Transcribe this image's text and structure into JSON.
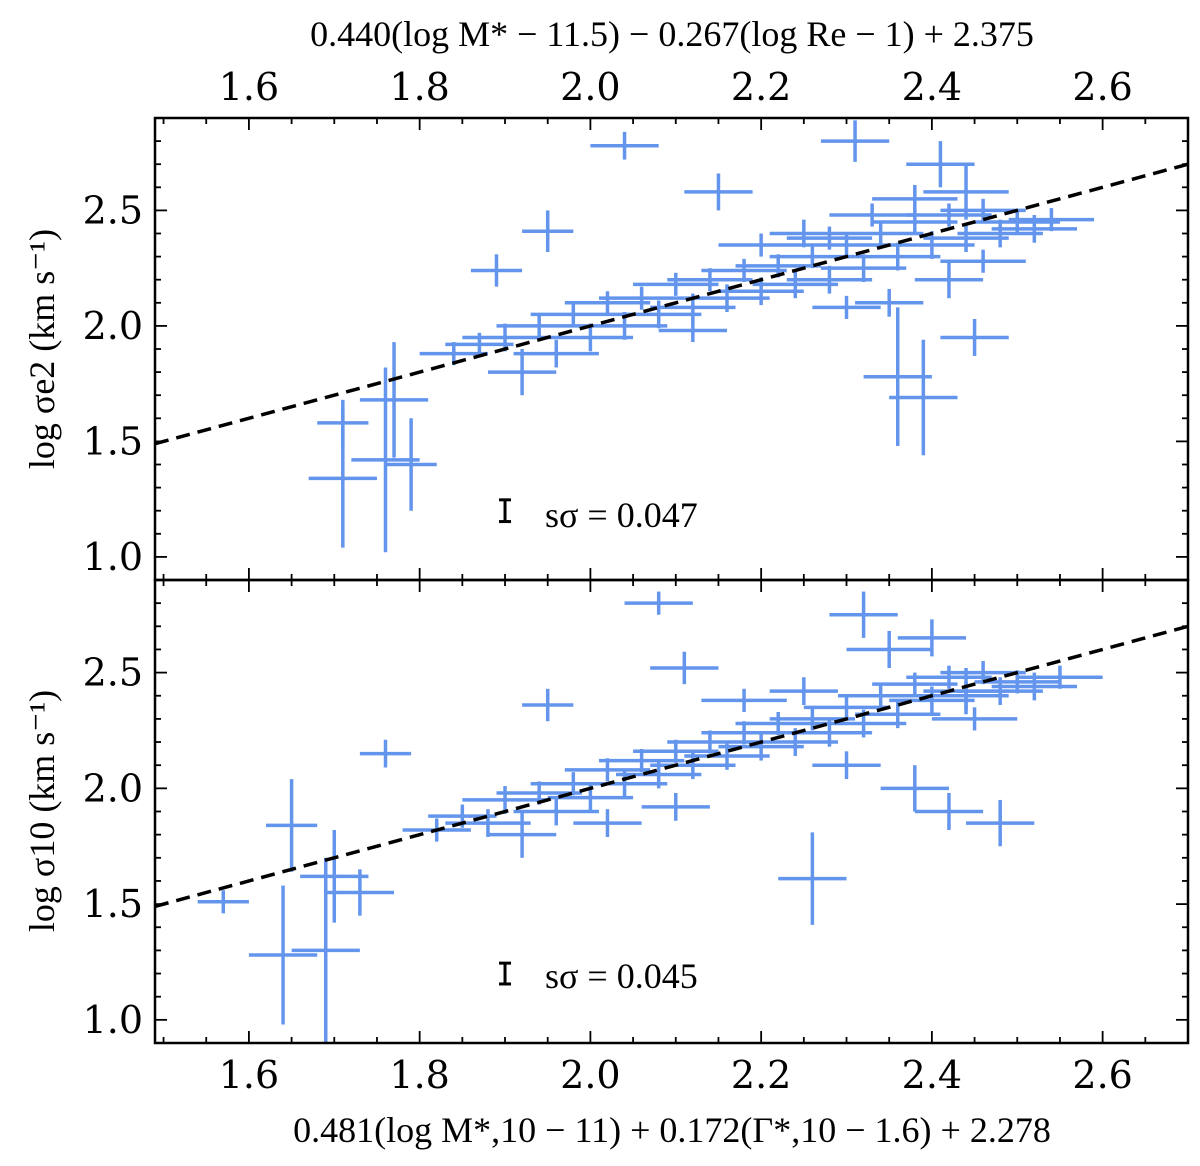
{
  "chart_data": [
    {
      "type": "scatter",
      "panel": "top",
      "xlabel": "0.440(log M* − 11.5) − 0.267(log Re − 1) + 2.375",
      "ylabel": "log σe2 (km s⁻¹)",
      "xlim": [
        1.49,
        2.7
      ],
      "ylim": [
        0.9,
        2.9
      ],
      "xticks": [
        "1.6",
        "1.8",
        "2.0",
        "2.2",
        "2.4",
        "2.6"
      ],
      "yticks": [
        "1.0",
        "1.5",
        "2.0",
        "2.5"
      ],
      "x_axis_position": "top",
      "annotation": "sσ = 0.047",
      "scatter_value": 0.047,
      "line": {
        "style": "dashed",
        "color": "#000000",
        "slope": 1,
        "intercept": 0
      },
      "color": "#6495ED",
      "points": [
        [
          2.04,
          2.78,
          0.04,
          0.06
        ],
        [
          2.15,
          2.58,
          0.04,
          0.08
        ],
        [
          2.31,
          2.8,
          0.04,
          0.09
        ],
        [
          1.95,
          2.41,
          0.03,
          0.09
        ],
        [
          1.89,
          2.24,
          0.03,
          0.07
        ],
        [
          1.71,
          1.58,
          0.03,
          0.1
        ],
        [
          1.71,
          1.34,
          0.04,
          0.3
        ],
        [
          1.76,
          1.42,
          0.04,
          0.4
        ],
        [
          1.79,
          1.4,
          0.03,
          0.2
        ],
        [
          1.77,
          1.68,
          0.04,
          0.25
        ],
        [
          2.39,
          1.69,
          0.04,
          0.25
        ],
        [
          2.36,
          1.78,
          0.04,
          0.3
        ],
        [
          2.44,
          2.58,
          0.05,
          0.12
        ],
        [
          2.41,
          2.7,
          0.04,
          0.1
        ],
        [
          1.84,
          1.88,
          0.04,
          0.05
        ],
        [
          1.87,
          1.92,
          0.04,
          0.05
        ],
        [
          1.9,
          1.95,
          0.05,
          0.06
        ],
        [
          1.92,
          1.8,
          0.04,
          0.1
        ],
        [
          1.94,
          2.0,
          0.05,
          0.05
        ],
        [
          1.96,
          1.88,
          0.05,
          0.06
        ],
        [
          1.98,
          2.05,
          0.05,
          0.05
        ],
        [
          2.0,
          1.95,
          0.05,
          0.06
        ],
        [
          2.02,
          2.1,
          0.05,
          0.05
        ],
        [
          2.04,
          2.0,
          0.05,
          0.06
        ],
        [
          2.06,
          2.12,
          0.05,
          0.05
        ],
        [
          2.08,
          2.05,
          0.05,
          0.06
        ],
        [
          2.1,
          2.18,
          0.05,
          0.05
        ],
        [
          2.12,
          2.08,
          0.05,
          0.06
        ],
        [
          2.14,
          2.2,
          0.05,
          0.05
        ],
        [
          2.16,
          2.12,
          0.05,
          0.06
        ],
        [
          2.18,
          2.24,
          0.05,
          0.05
        ],
        [
          2.2,
          2.15,
          0.05,
          0.06
        ],
        [
          2.22,
          2.26,
          0.05,
          0.05
        ],
        [
          2.24,
          2.18,
          0.05,
          0.06
        ],
        [
          2.26,
          2.3,
          0.05,
          0.05
        ],
        [
          2.28,
          2.2,
          0.05,
          0.06
        ],
        [
          2.3,
          2.35,
          0.05,
          0.05
        ],
        [
          2.32,
          2.25,
          0.05,
          0.06
        ],
        [
          2.34,
          2.4,
          0.05,
          0.05
        ],
        [
          2.36,
          2.3,
          0.05,
          0.06
        ],
        [
          2.38,
          2.45,
          0.05,
          0.05
        ],
        [
          2.4,
          2.35,
          0.05,
          0.06
        ],
        [
          2.42,
          2.48,
          0.05,
          0.05
        ],
        [
          2.44,
          2.38,
          0.05,
          0.06
        ],
        [
          2.46,
          2.5,
          0.05,
          0.05
        ],
        [
          2.48,
          2.4,
          0.05,
          0.06
        ],
        [
          2.5,
          2.45,
          0.05,
          0.05
        ],
        [
          2.52,
          2.42,
          0.05,
          0.06
        ],
        [
          2.54,
          2.46,
          0.05,
          0.05
        ],
        [
          2.35,
          2.1,
          0.04,
          0.06
        ],
        [
          2.3,
          2.08,
          0.04,
          0.05
        ],
        [
          2.42,
          2.2,
          0.04,
          0.08
        ],
        [
          2.45,
          1.95,
          0.04,
          0.08
        ],
        [
          2.25,
          2.4,
          0.04,
          0.06
        ],
        [
          2.2,
          2.35,
          0.05,
          0.05
        ],
        [
          2.38,
          2.55,
          0.05,
          0.06
        ],
        [
          2.46,
          2.28,
          0.05,
          0.05
        ],
        [
          2.33,
          2.48,
          0.05,
          0.05
        ],
        [
          2.28,
          2.38,
          0.05,
          0.05
        ],
        [
          2.12,
          1.98,
          0.04,
          0.05
        ]
      ]
    },
    {
      "type": "scatter",
      "panel": "bottom",
      "xlabel": "0.481(log M*,10 − 11) + 0.172(Γ*,10 − 1.6) + 2.278",
      "ylabel": "log σ10 (km s⁻¹)",
      "xlim": [
        1.49,
        2.7
      ],
      "ylim": [
        0.9,
        2.9
      ],
      "xticks": [
        "1.6",
        "1.8",
        "2.0",
        "2.2",
        "2.4",
        "2.6"
      ],
      "yticks": [
        "1.0",
        "1.5",
        "2.0",
        "2.5"
      ],
      "x_axis_position": "bottom",
      "annotation": "sσ = 0.045",
      "scatter_value": 0.045,
      "line": {
        "style": "dashed",
        "color": "#000000",
        "slope": 1,
        "intercept": 0
      },
      "color": "#6495ED",
      "points": [
        [
          2.08,
          2.8,
          0.04,
          0.05
        ],
        [
          2.11,
          2.52,
          0.04,
          0.07
        ],
        [
          1.95,
          2.36,
          0.03,
          0.07
        ],
        [
          1.76,
          2.15,
          0.03,
          0.06
        ],
        [
          1.57,
          1.51,
          0.03,
          0.05
        ],
        [
          1.64,
          1.28,
          0.04,
          0.3
        ],
        [
          1.69,
          1.3,
          0.04,
          0.4
        ],
        [
          1.65,
          1.84,
          0.03,
          0.2
        ],
        [
          1.7,
          1.62,
          0.04,
          0.2
        ],
        [
          1.73,
          1.55,
          0.04,
          0.1
        ],
        [
          2.26,
          1.61,
          0.04,
          0.2
        ],
        [
          2.32,
          2.75,
          0.04,
          0.1
        ],
        [
          2.44,
          2.42,
          0.05,
          0.1
        ],
        [
          1.82,
          1.82,
          0.04,
          0.05
        ],
        [
          1.85,
          1.88,
          0.04,
          0.05
        ],
        [
          1.88,
          1.85,
          0.05,
          0.06
        ],
        [
          1.9,
          1.95,
          0.05,
          0.06
        ],
        [
          1.92,
          1.8,
          0.04,
          0.1
        ],
        [
          1.94,
          1.98,
          0.05,
          0.05
        ],
        [
          1.96,
          1.9,
          0.05,
          0.06
        ],
        [
          1.98,
          2.02,
          0.05,
          0.05
        ],
        [
          2.0,
          1.96,
          0.05,
          0.06
        ],
        [
          2.02,
          2.08,
          0.05,
          0.05
        ],
        [
          2.04,
          2.02,
          0.05,
          0.06
        ],
        [
          2.06,
          2.12,
          0.05,
          0.05
        ],
        [
          2.08,
          2.06,
          0.05,
          0.06
        ],
        [
          2.1,
          2.16,
          0.05,
          0.05
        ],
        [
          2.12,
          2.1,
          0.05,
          0.06
        ],
        [
          2.14,
          2.2,
          0.05,
          0.05
        ],
        [
          2.16,
          2.14,
          0.05,
          0.06
        ],
        [
          2.18,
          2.24,
          0.05,
          0.05
        ],
        [
          2.2,
          2.18,
          0.05,
          0.06
        ],
        [
          2.22,
          2.28,
          0.05,
          0.05
        ],
        [
          2.24,
          2.2,
          0.05,
          0.06
        ],
        [
          2.26,
          2.3,
          0.05,
          0.05
        ],
        [
          2.28,
          2.24,
          0.05,
          0.06
        ],
        [
          2.3,
          2.35,
          0.05,
          0.05
        ],
        [
          2.32,
          2.28,
          0.05,
          0.06
        ],
        [
          2.34,
          2.4,
          0.05,
          0.05
        ],
        [
          2.36,
          2.32,
          0.05,
          0.06
        ],
        [
          2.38,
          2.45,
          0.05,
          0.05
        ],
        [
          2.4,
          2.38,
          0.05,
          0.06
        ],
        [
          2.42,
          2.48,
          0.05,
          0.05
        ],
        [
          2.44,
          2.4,
          0.05,
          0.06
        ],
        [
          2.46,
          2.5,
          0.05,
          0.05
        ],
        [
          2.48,
          2.42,
          0.05,
          0.06
        ],
        [
          2.5,
          2.46,
          0.05,
          0.05
        ],
        [
          2.52,
          2.44,
          0.05,
          0.06
        ],
        [
          2.55,
          2.48,
          0.05,
          0.05
        ],
        [
          2.38,
          2.0,
          0.04,
          0.1
        ],
        [
          2.42,
          1.9,
          0.04,
          0.08
        ],
        [
          2.48,
          1.85,
          0.04,
          0.1
        ],
        [
          2.3,
          2.1,
          0.04,
          0.06
        ],
        [
          2.25,
          2.42,
          0.04,
          0.06
        ],
        [
          2.35,
          2.6,
          0.05,
          0.08
        ],
        [
          2.4,
          2.65,
          0.04,
          0.08
        ],
        [
          2.18,
          2.38,
          0.05,
          0.05
        ],
        [
          2.45,
          2.3,
          0.05,
          0.05
        ],
        [
          2.1,
          1.92,
          0.04,
          0.06
        ],
        [
          2.02,
          1.85,
          0.04,
          0.06
        ]
      ]
    }
  ]
}
